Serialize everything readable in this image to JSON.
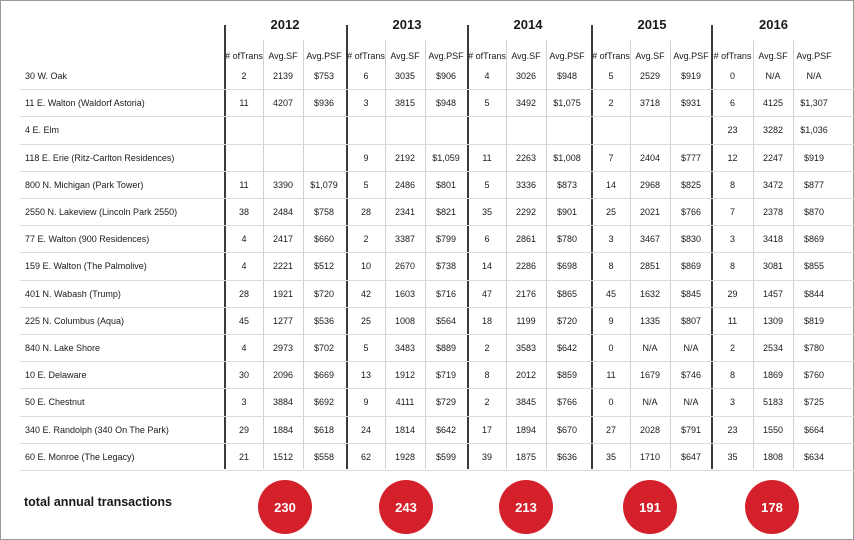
{
  "years": [
    "2012",
    "2013",
    "2014",
    "2015",
    "2016"
  ],
  "column_headers": [
    {
      "line1": "# of",
      "line2": "Trans"
    },
    {
      "line1": "Avg.",
      "line2": "SF"
    },
    {
      "line1": "Avg.",
      "line2": "PSF"
    }
  ],
  "rows": [
    {
      "name": "30 W. Oak",
      "values": [
        [
          "2",
          "2139",
          "$753"
        ],
        [
          "6",
          "3035",
          "$906"
        ],
        [
          "4",
          "3026",
          "$948"
        ],
        [
          "5",
          "2529",
          "$919"
        ],
        [
          "0",
          "N/A",
          "N/A"
        ]
      ]
    },
    {
      "name": "11 E. Walton (Waldorf Astoria)",
      "values": [
        [
          "11",
          "4207",
          "$936"
        ],
        [
          "3",
          "3815",
          "$948"
        ],
        [
          "5",
          "3492",
          "$1,075"
        ],
        [
          "2",
          "3718",
          "$931"
        ],
        [
          "6",
          "4125",
          "$1,307"
        ]
      ]
    },
    {
      "name": "4 E. Elm",
      "values": [
        [
          "",
          "",
          ""
        ],
        [
          "",
          "",
          ""
        ],
        [
          "",
          "",
          ""
        ],
        [
          "",
          "",
          ""
        ],
        [
          "23",
          "3282",
          "$1,036"
        ]
      ]
    },
    {
      "name": "118 E. Erie (Ritz-Carlton Residences)",
      "values": [
        [
          "",
          "",
          ""
        ],
        [
          "9",
          "2192",
          "$1,059"
        ],
        [
          "11",
          "2263",
          "$1,008"
        ],
        [
          "7",
          "2404",
          "$777"
        ],
        [
          "12",
          "2247",
          "$919"
        ]
      ]
    },
    {
      "name": "800 N. Michigan (Park Tower)",
      "values": [
        [
          "11",
          "3390",
          "$1,079"
        ],
        [
          "5",
          "2486",
          "$801"
        ],
        [
          "5",
          "3336",
          "$873"
        ],
        [
          "14",
          "2968",
          "$825"
        ],
        [
          "8",
          "3472",
          "$877"
        ]
      ]
    },
    {
      "name": "2550 N. Lakeview (Lincoln Park 2550)",
      "values": [
        [
          "38",
          "2484",
          "$758"
        ],
        [
          "28",
          "2341",
          "$821"
        ],
        [
          "35",
          "2292",
          "$901"
        ],
        [
          "25",
          "2021",
          "$766"
        ],
        [
          "7",
          "2378",
          "$870"
        ]
      ]
    },
    {
      "name": "77 E. Walton (900 Residences)",
      "values": [
        [
          "4",
          "2417",
          "$660"
        ],
        [
          "2",
          "3387",
          "$799"
        ],
        [
          "6",
          "2861",
          "$780"
        ],
        [
          "3",
          "3467",
          "$830"
        ],
        [
          "3",
          "3418",
          "$869"
        ]
      ]
    },
    {
      "name": "159 E. Walton (The Palmolive)",
      "values": [
        [
          "4",
          "2221",
          "$512"
        ],
        [
          "10",
          "2670",
          "$738"
        ],
        [
          "14",
          "2286",
          "$698"
        ],
        [
          "8",
          "2851",
          "$869"
        ],
        [
          "8",
          "3081",
          "$855"
        ]
      ]
    },
    {
      "name": "401 N. Wabash (Trump)",
      "values": [
        [
          "28",
          "1921",
          "$720"
        ],
        [
          "42",
          "1603",
          "$716"
        ],
        [
          "47",
          "2176",
          "$865"
        ],
        [
          "45",
          "1632",
          "$845"
        ],
        [
          "29",
          "1457",
          "$844"
        ]
      ]
    },
    {
      "name": "225 N. Columbus (Aqua)",
      "values": [
        [
          "45",
          "1277",
          "$536"
        ],
        [
          "25",
          "1008",
          "$564"
        ],
        [
          "18",
          "1199",
          "$720"
        ],
        [
          "9",
          "1335",
          "$807"
        ],
        [
          "11",
          "1309",
          "$819"
        ]
      ]
    },
    {
      "name": "840 N. Lake Shore",
      "values": [
        [
          "4",
          "2973",
          "$702"
        ],
        [
          "5",
          "3483",
          "$889"
        ],
        [
          "2",
          "3583",
          "$642"
        ],
        [
          "0",
          "N/A",
          "N/A"
        ],
        [
          "2",
          "2534",
          "$780"
        ]
      ]
    },
    {
      "name": "10 E. Delaware",
      "values": [
        [
          "30",
          "2096",
          "$669"
        ],
        [
          "13",
          "1912",
          "$719"
        ],
        [
          "8",
          "2012",
          "$859"
        ],
        [
          "11",
          "1679",
          "$746"
        ],
        [
          "8",
          "1869",
          "$760"
        ]
      ]
    },
    {
      "name": "50 E. Chestnut",
      "values": [
        [
          "3",
          "3884",
          "$692"
        ],
        [
          "9",
          "4111",
          "$729"
        ],
        [
          "2",
          "3845",
          "$766"
        ],
        [
          "0",
          "N/A",
          "N/A"
        ],
        [
          "3",
          "5183",
          "$725"
        ]
      ]
    },
    {
      "name": "340 E. Randolph (340 On The Park)",
      "values": [
        [
          "29",
          "1884",
          "$618"
        ],
        [
          "24",
          "1814",
          "$642"
        ],
        [
          "17",
          "1894",
          "$670"
        ],
        [
          "27",
          "2028",
          "$791"
        ],
        [
          "23",
          "1550",
          "$664"
        ]
      ]
    },
    {
      "name": "60 E. Monroe (The Legacy)",
      "values": [
        [
          "21",
          "1512",
          "$558"
        ],
        [
          "62",
          "1928",
          "$599"
        ],
        [
          "39",
          "1875",
          "$636"
        ],
        [
          "35",
          "1710",
          "$647"
        ],
        [
          "35",
          "1808",
          "$634"
        ]
      ]
    }
  ],
  "totals": {
    "label": "total annual transactions",
    "values": [
      "230",
      "243",
      "213",
      "191",
      "178"
    ]
  },
  "colors": {
    "accent": "#d4202a",
    "year_separator": "#3a3a3a",
    "grid": "#d2d2d2"
  }
}
